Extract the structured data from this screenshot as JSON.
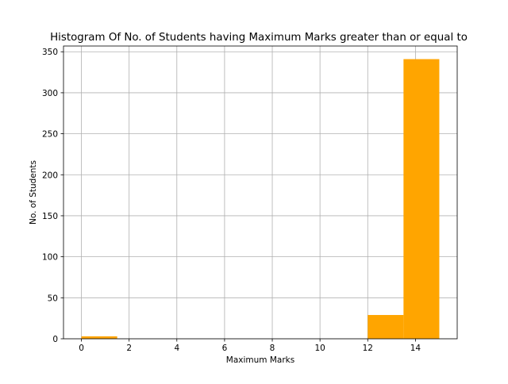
{
  "chart_data": {
    "type": "bar",
    "title": "Histogram Of No. of Students having Maximum Marks greater than or equal to",
    "xlabel": "Maximum Marks",
    "ylabel": "No. of Students",
    "xlim": [
      -0.75,
      15.75
    ],
    "ylim": [
      0,
      357
    ],
    "xticks": [
      0,
      2,
      4,
      6,
      8,
      10,
      12,
      14
    ],
    "yticks": [
      0,
      50,
      100,
      150,
      200,
      250,
      300,
      350
    ],
    "grid": true,
    "bar_color": "#ffa500",
    "bins": [
      {
        "x0": 0,
        "x1": 1.5,
        "count": 3
      },
      {
        "x0": 1.5,
        "x1": 3,
        "count": 0
      },
      {
        "x0": 3,
        "x1": 4.5,
        "count": 0
      },
      {
        "x0": 4.5,
        "x1": 6,
        "count": 0
      },
      {
        "x0": 6,
        "x1": 7.5,
        "count": 0
      },
      {
        "x0": 7.5,
        "x1": 9,
        "count": 0
      },
      {
        "x0": 9,
        "x1": 10.5,
        "count": 0
      },
      {
        "x0": 10.5,
        "x1": 12,
        "count": 0
      },
      {
        "x0": 12,
        "x1": 13.5,
        "count": 29
      },
      {
        "x0": 13.5,
        "x1": 15,
        "count": 341
      }
    ]
  }
}
